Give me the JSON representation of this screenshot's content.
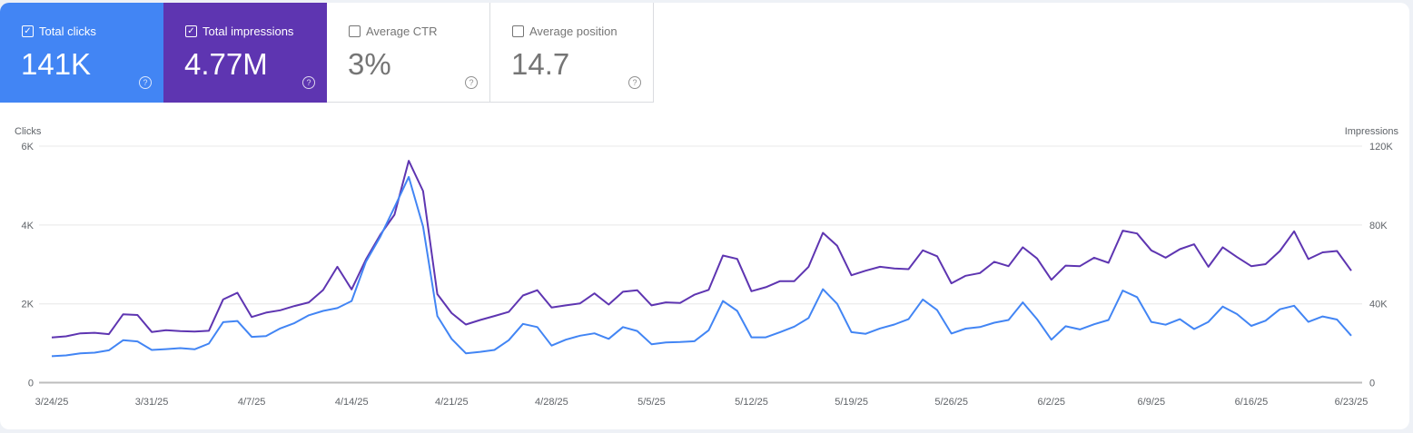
{
  "metrics": [
    {
      "label": "Total clicks",
      "value": "141K",
      "checked": true,
      "color": "#4285f4"
    },
    {
      "label": "Total impressions",
      "value": "4.77M",
      "checked": true,
      "color": "#5e35b1"
    },
    {
      "label": "Average CTR",
      "value": "3%",
      "checked": false
    },
    {
      "label": "Average position",
      "value": "14.7",
      "checked": false
    }
  ],
  "icons": {
    "checkbox_checked": "check-icon",
    "help": "help-circle-icon"
  },
  "chart_data": {
    "type": "line",
    "y_left_label": "Clicks",
    "y_right_label": "Impressions",
    "y_left_ticks": [
      "0",
      "2K",
      "4K",
      "6K"
    ],
    "y_right_ticks": [
      "0",
      "40K",
      "80K",
      "120K"
    ],
    "ylim_left": [
      0,
      6000
    ],
    "ylim_right": [
      0,
      120000
    ],
    "grid": true,
    "x_start": "3/24/25",
    "x_end": "6/23/25",
    "x_tick_labels": [
      "3/24/25",
      "3/31/25",
      "4/7/25",
      "4/14/25",
      "4/21/25",
      "4/28/25",
      "5/5/25",
      "5/12/25",
      "5/19/25",
      "5/26/25",
      "6/2/25",
      "6/9/25",
      "6/16/25",
      "6/23/25"
    ],
    "series": [
      {
        "name": "Clicks",
        "axis": "left",
        "color": "#4285f4",
        "values": [
          670,
          690,
          745,
          760,
          820,
          1075,
          1045,
          830,
          850,
          875,
          845,
          990,
          1535,
          1565,
          1160,
          1180,
          1375,
          1510,
          1710,
          1820,
          1890,
          2070,
          3070,
          3700,
          4450,
          5220,
          3960,
          1690,
          1110,
          745,
          780,
          830,
          1075,
          1490,
          1410,
          940,
          1090,
          1190,
          1250,
          1110,
          1410,
          1310,
          975,
          1020,
          1030,
          1050,
          1330,
          2070,
          1820,
          1150,
          1150,
          1280,
          1420,
          1640,
          2370,
          2000,
          1280,
          1240,
          1375,
          1475,
          1610,
          2110,
          1840,
          1245,
          1370,
          1410,
          1520,
          1590,
          2035,
          1610,
          1090,
          1430,
          1350,
          1480,
          1590,
          2335,
          2170,
          1540,
          1470,
          1610,
          1360,
          1540,
          1930,
          1740,
          1440,
          1570,
          1860,
          1950,
          1540,
          1680,
          1600,
          1190
        ]
      },
      {
        "name": "Impressions",
        "axis": "right",
        "color": "#5e35b1",
        "values": [
          22900,
          23500,
          25000,
          25300,
          24600,
          34700,
          34300,
          25700,
          26600,
          26100,
          25900,
          26300,
          42200,
          45600,
          33300,
          35500,
          36700,
          38900,
          40700,
          47000,
          58800,
          47300,
          62500,
          75000,
          85200,
          112600,
          97200,
          44900,
          35300,
          29500,
          31800,
          33800,
          35900,
          44200,
          46900,
          38100,
          39200,
          40200,
          45300,
          39600,
          46100,
          46900,
          39200,
          40700,
          40400,
          44600,
          47100,
          64500,
          62800,
          46400,
          48400,
          51500,
          51500,
          58800,
          76000,
          69400,
          54500,
          56800,
          58800,
          57900,
          57600,
          67100,
          64100,
          50400,
          54200,
          55600,
          61300,
          59100,
          68700,
          63000,
          52200,
          59400,
          59100,
          63400,
          60800,
          77100,
          75700,
          67100,
          63400,
          67700,
          70200,
          58800,
          68700,
          63700,
          59100,
          60100,
          66800,
          76800,
          62700,
          66100,
          66800,
          56800
        ]
      }
    ]
  }
}
